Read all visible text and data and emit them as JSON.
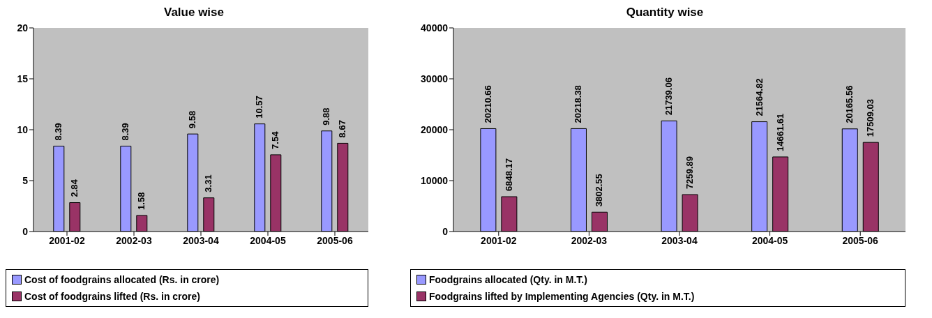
{
  "chart_data": [
    {
      "type": "bar",
      "title": "Value wise",
      "categories": [
        "2001-02",
        "2002-03",
        "2003-04",
        "2004-05",
        "2005-06"
      ],
      "series": [
        {
          "name": "Cost of foodgrains allocated (Rs. in crore)",
          "color": "#9999ff",
          "values": [
            8.39,
            8.39,
            9.58,
            10.57,
            9.88
          ]
        },
        {
          "name": "Cost of foodgrains lifted (Rs. in crore)",
          "color": "#993366",
          "values": [
            2.84,
            1.58,
            3.31,
            7.54,
            8.67
          ]
        }
      ],
      "ylim": [
        0,
        20
      ],
      "yticks": [
        0,
        5,
        10,
        15,
        20
      ],
      "data_labels": true,
      "legend": "bottom"
    },
    {
      "type": "bar",
      "title": "Quantity wise",
      "categories": [
        "2001-02",
        "2002-03",
        "2003-04",
        "2004-05",
        "2005-06"
      ],
      "series": [
        {
          "name": "Foodgrains allocated (Qty. in M.T.)",
          "color": "#9999ff",
          "values": [
            20210.66,
            20218.38,
            21739.06,
            21564.82,
            20165.56
          ]
        },
        {
          "name": "Foodgrains lifted by Implementing Agencies  (Qty. in M.T.)",
          "color": "#993366",
          "values": [
            6848.17,
            3802.55,
            7259.89,
            14661.61,
            17509.03
          ]
        }
      ],
      "ylim": [
        0,
        40000
      ],
      "yticks": [
        0,
        10000,
        20000,
        30000,
        40000
      ],
      "data_labels": true,
      "legend": "bottom"
    }
  ]
}
